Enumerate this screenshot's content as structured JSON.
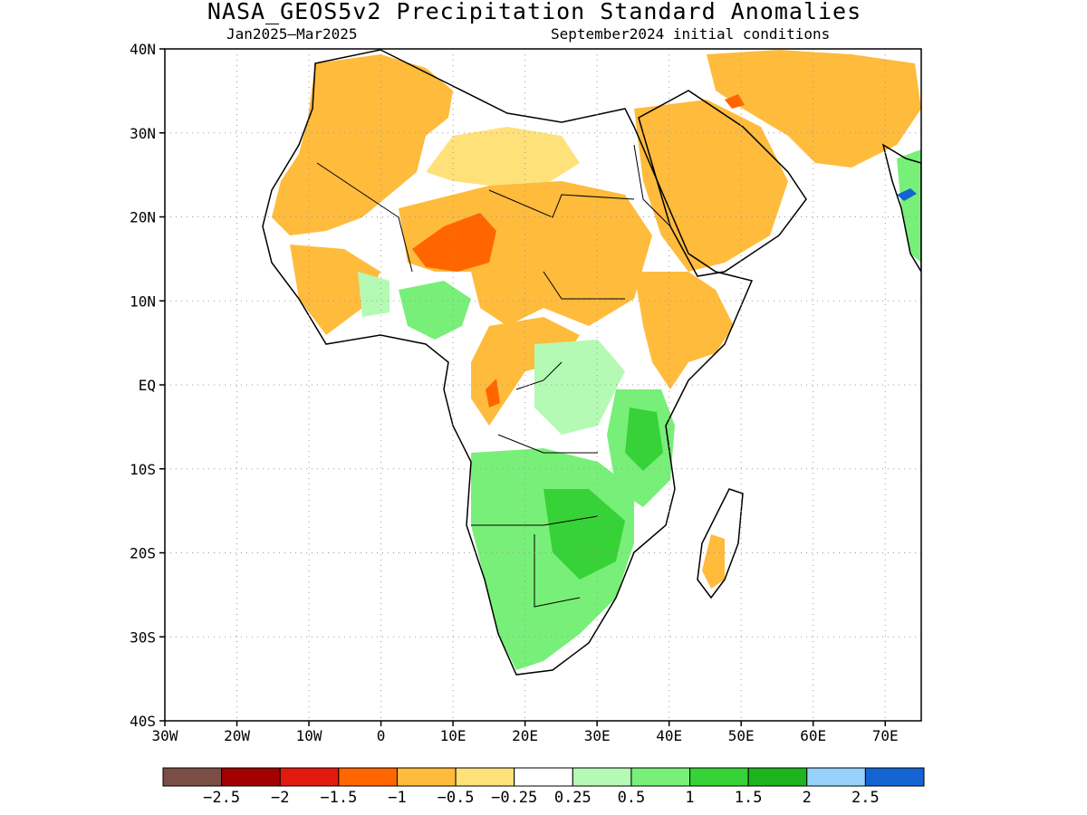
{
  "title": "NASA_GEOS5v2 Precipitation Standard Anomalies",
  "period": "Jan2025–Mar2025",
  "init": "September2024 initial conditions",
  "lat_ticks": [
    {
      "label": "40N",
      "value": 40
    },
    {
      "label": "30N",
      "value": 30
    },
    {
      "label": "20N",
      "value": 20
    },
    {
      "label": "10N",
      "value": 10
    },
    {
      "label": "EQ",
      "value": 0
    },
    {
      "label": "10S",
      "value": -10
    },
    {
      "label": "20S",
      "value": -20
    },
    {
      "label": "30S",
      "value": -30
    },
    {
      "label": "40S",
      "value": -40
    }
  ],
  "lon_ticks": [
    {
      "label": "30W",
      "value": -30
    },
    {
      "label": "20W",
      "value": -20
    },
    {
      "label": "10W",
      "value": -10
    },
    {
      "label": "0",
      "value": 0
    },
    {
      "label": "10E",
      "value": 10
    },
    {
      "label": "20E",
      "value": 20
    },
    {
      "label": "30E",
      "value": 30
    },
    {
      "label": "40E",
      "value": 40
    },
    {
      "label": "50E",
      "value": 50
    },
    {
      "label": "60E",
      "value": 60
    },
    {
      "label": "70E",
      "value": 70
    }
  ],
  "colorbar": {
    "colors": [
      "#7a4e45",
      "#a30000",
      "#e21a0d",
      "#ff6600",
      "#ffbb3c",
      "#ffe17a",
      "#ffffff",
      "#b4fab4",
      "#78ef78",
      "#37d237",
      "#1eb41e",
      "#96d2fa",
      "#1464d2"
    ],
    "labels": [
      "−2.5",
      "−2",
      "−1.5",
      "−1",
      "−0.5",
      "−0.25",
      "0.25",
      "0.5",
      "1",
      "1.5",
      "2",
      "2.5"
    ]
  },
  "legend_colors": {
    "strong_dry": "#ff6600",
    "dry": "#ffbb3c",
    "weak_dry": "#ffe17a",
    "weak_wet": "#b4fab4",
    "wet": "#78ef78",
    "strong_wet": "#37d237",
    "very_wet": "#1eb41e",
    "extreme_wet_light": "#96d2fa",
    "extreme_wet": "#1464d2"
  }
}
